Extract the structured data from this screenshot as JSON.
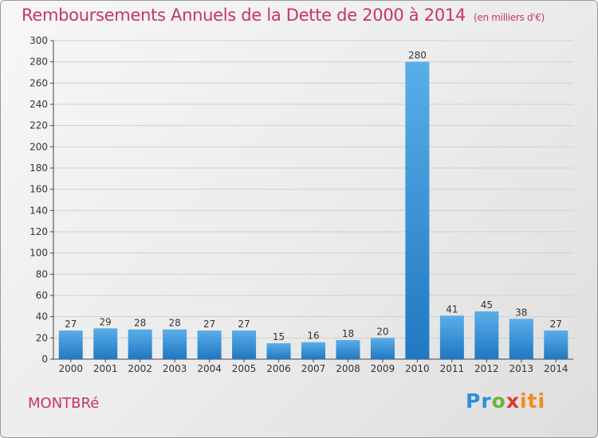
{
  "title": "Remboursements Annuels de la Dette de 2000 à 2014",
  "subtitle": "(en milliers d'€)",
  "commune": "MONTBRé",
  "logo": {
    "p1": "Pr",
    "p2": "o",
    "p3": "x",
    "p4": "iti"
  },
  "colors": {
    "title": "#c8336b",
    "bar_light": "#5aaee8",
    "bar_dark": "#1f78c2",
    "grid": "#d0d0d0"
  },
  "chart_data": {
    "type": "bar",
    "title": "Remboursements Annuels de la Dette de 2000 à 2014",
    "xlabel": "",
    "ylabel": "",
    "categories": [
      "2000",
      "2001",
      "2002",
      "2003",
      "2004",
      "2005",
      "2006",
      "2007",
      "2008",
      "2009",
      "2010",
      "2011",
      "2012",
      "2013",
      "2014"
    ],
    "values": [
      27,
      29,
      28,
      28,
      27,
      27,
      15,
      16,
      18,
      20,
      280,
      41,
      45,
      38,
      27
    ],
    "ylim": [
      0,
      300
    ],
    "yticks": [
      0,
      20,
      40,
      60,
      80,
      100,
      120,
      140,
      160,
      180,
      200,
      220,
      240,
      260,
      280,
      300
    ],
    "grid": true
  }
}
